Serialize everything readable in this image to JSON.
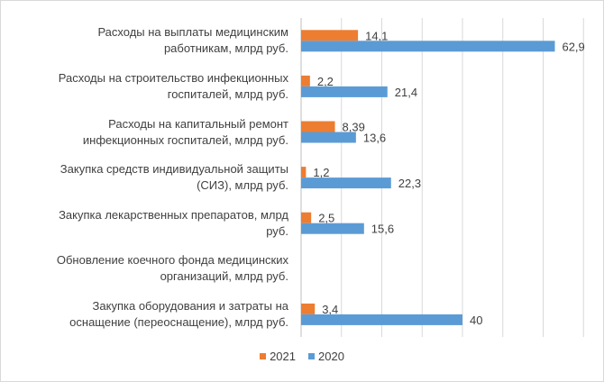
{
  "chart_data": {
    "type": "bar",
    "orientation": "horizontal",
    "categories": [
      "Расходы на выплаты медицинским работникам, млрд руб.",
      "Расходы на строительство инфекционных госпиталей, млрд руб.",
      "Расходы на капитальный ремонт инфекционных госпиталей, млрд руб.",
      "Закупка средств индивидуальной защиты (СИЗ), млрд руб.",
      "Закупка лекарственных препаратов, млрд руб.",
      "Обновление коечного фонда медицинских организаций, млрд руб.",
      "Закупка оборудования и затраты на оснащение (переоснащение), млрд руб."
    ],
    "category_lines": [
      [
        "Расходы на выплаты медицинским",
        "работникам, млрд руб."
      ],
      [
        "Расходы на строительство инфекционных",
        "госпиталей, млрд руб."
      ],
      [
        "Расходы на капитальный ремонт",
        "инфекционных госпиталей, млрд руб."
      ],
      [
        "Закупка средств индивидуальной защиты",
        "(СИЗ), млрд руб."
      ],
      [
        "Закупка лекарственных препаратов, млрд",
        "руб."
      ],
      [
        "Обновление коечного фонда медицинских",
        "организаций, млрд руб."
      ],
      [
        "Закупка оборудования и затраты на",
        "оснащение (переоснащение), млрд руб."
      ]
    ],
    "series": [
      {
        "name": "2021",
        "color": "#ed7d31",
        "values": [
          14.1,
          2.2,
          8.39,
          1.2,
          2.5,
          null,
          3.4
        ],
        "labels": [
          "14,1",
          "2,2",
          "8,39",
          "1,2",
          "2,5",
          "",
          "3,4"
        ]
      },
      {
        "name": "2020",
        "color": "#5b9bd5",
        "values": [
          62.9,
          21.4,
          13.6,
          22.3,
          15.6,
          null,
          40
        ],
        "labels": [
          "62,9",
          "21,4",
          "13,6",
          "22,3",
          "15,6",
          "",
          "40"
        ]
      }
    ],
    "xlim": [
      0,
      70
    ],
    "grid": true,
    "legend_position": "bottom"
  }
}
